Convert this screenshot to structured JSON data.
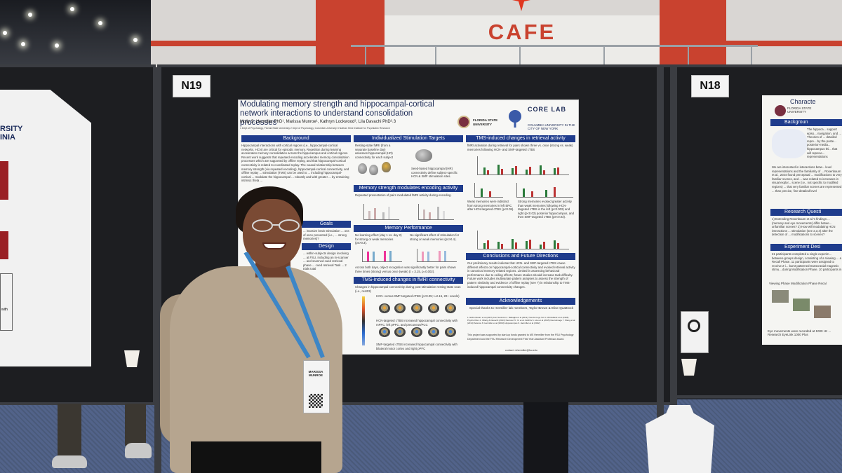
{
  "venue": {
    "cafe_sign": "CAFE",
    "board_labels": {
      "center": "N19",
      "right": "N18"
    }
  },
  "left_poster": {
    "title_fragment": "RSITY\nINIA",
    "side_text": "with"
  },
  "center_poster": {
    "title": "Modulating memory strength and hippocampal-cortical network interactions to understand consolidation processes",
    "authors": "Molly S. Hermiller PhD¹, Marissa Munroe¹, Kathryn Lockwood², Lila Davachi PhD²˒3",
    "affiliations": "1 Dept of Psychology, Florida State University   2 Dept of Psychology, Columbia University   3 Nathan Kline Institute for Psychiatric Research",
    "logos": {
      "fsu": "FLORIDA STATE UNIVERSITY",
      "corelab": "CORE LAB",
      "columbia": "COLUMBIA UNIVERSITY IN THE CITY OF NEW YORK"
    },
    "sections": {
      "background": {
        "heading": "Background",
        "text": "Hippocampal interactions with cortical regions (i.e., hippocampal-cortical networks, HCN) are critical for episodic memory. Repetition during learning accelerates memory consolidation across the hippocampus and cortical regions. Recent work suggests that repeated encoding accelerates memory consolidation processes which are supported by offline replay, and that hippocampal-cortical connectivity is related to coordinated replay. The causal relationship between memory strength (via repeated encoding), hippocampal-cortical connectivity, and offline replay ... stimulation (TMS) can be used to ... including hippocampal-cortical ... modulate the hippocampal ... robustly and with greater ... by entraining intrinsic theta ..."
      },
      "goals": {
        "heading": "Goals",
        "text": "... invasive brain stimulation ... ons of once presented (i.e., ... strong memories)?"
      },
      "design": {
        "heading": "Design",
        "text": "... within-subjects design involving ... at FSU, including an in-scanner ... and scanned cued retrieval phase ... cued retrieval Task ... 2 trials total"
      },
      "targets": {
        "heading": "Individualized Stimulation Targets",
        "text": "Resting-state fMRI (from a separate baseline day) assesses hippocampal (HR) connectivity for each subject",
        "seed_text": "Seed-based hippocampal (HR) connectivity define subject-specific HCN & SMF stimulation sites."
      },
      "encoding": {
        "heading": "Memory strength modulates encoding activity",
        "text": "Repeated presentation of pairs modulated fMRI activity during encoding."
      },
      "memory": {
        "heading": "Memory Performance",
        "text_a": "No learning effect (day 1 vs. day 2) for strong or weak memories (ps>0.3).",
        "text_b": "No significant effect of stimulation for strong or weak memories (ps>0.4).",
        "text_c": "Across both days, object recognition was significantly better for pairs shown three times (strong) versus once (weak) (t = 3.15, p=0.002)."
      },
      "fmri": {
        "heading": "TMS-induced changes in fMRI connectivity",
        "text": "Changes in hippocampal connectivity during post-stimulation resting-state scan (i.e., rest03)",
        "hcn_text": "HCN- versus SMF-targeted cTBS (p<0.05; t=2.16, 20+ voxels)",
        "hcn_text2": "HCN-targeted cTBS increased hippocampal connectivity with mPFC, left pPFC, and precuneus/PCC",
        "smf_text": "SMF-targeted cTBS increased hippocampal connectivity with bilateral motor cortex and right pPFC"
      },
      "retrieval": {
        "heading": "TMS-induced changes in retrieval activity",
        "text": "fMRI activation during retrieval for pairs shown three vs. once (strong vs. weak) memories following HCN- and SMF-targeted cTBS",
        "text_b": "Weak memories were indistinct from strong memories in left ERC after HCN-targeted cTBS (p<0.05).",
        "text_c": "Strong memories evoked greater activity than weak memories following HCN-targeted cTBS in the left (p<0.002) and right (p<0.02) posterior hippocampus, and then SMF-targeted cTBS (ps<0.03)."
      },
      "conclusions": {
        "heading": "Conclusions and Future Directions",
        "text": "Our preliminary results indicate that HCN- and SMF-targeted cTBS cause different effects on hippocampal-cortical connectivity and evoked retrieval activity in canonical memory-related regions. Limited in assessing behavioral performance due to ceiling effects; future studies should increase task difficulty. Future work includes multivariate pattern analyses to assess the strength of pattern similarity and evidence of offline replay (see ?) in relationship to TMS-induced hippocampal connectivity changes."
      },
      "acknowledgements": {
        "heading": "Acknowledgements",
        "text": "Special thanks to Hermiller lab members, Taylor Brown & Elise Quattrock",
        "refs": "1. Eichenbaum et al (2007) Ann Neurosci   2. Battaglia et al (2011) Trends Cogn Sci   3. McClelland et al (1995) Psychol Rev   4. Villarig & Davachi (2013) Neurosci   5. Yu et al. bioRxiv   6. Hsu et al (2015) NeuroImage   7. Wang et al (2014) Science   8. Hermiller et al (2019) Hippocampus   9. Hermiller et al (2022)",
        "funding": "This project was supported by start-up funds granted to MS Hermiller from the FSU Psychology Department and the FSU Research Development First Year Assistant Professor award.",
        "contact": "contact: mhermiller@fsu.edu"
      }
    }
  },
  "right_poster": {
    "title_fragment": "Characte",
    "fsu": "FLORIDA STATE UNIVERSITY",
    "headings": [
      "Backgroun",
      "Research Questi",
      "Experiment Desi"
    ],
    "text_1": "The hippoca... support episo... navigation, and ... Theories of ... detailed repre... by the poste... posterior-media... hippocampus thi... that will represe... representations",
    "text_2": "We are interested in interactions betw... level representations and the familiarity of ... Rosenbaum et al., 2024 found perceptual ... modifications to very familiar scenes, and ... was related to increases in visual explor... scene (i.e., not specific to modified regions) ... that very familiar scenes are represented ... than precise, fine-detailed level",
    "text_3": "1) Extending Rosenbaum et al.'s findings ... (memory and eye movements) differ betwe... unfamiliar scenes? 2) How will modulating HCN interactions ... stimulation (see 2,3,4) alter the detection of ... modifications to scenes?",
    "text_4": "21 participants completed a single experim... between-groups design, consisting of a Viewing ... a Recall Phase. 11 participants were assigned to receive 2-i... burst patterned transcranial magnetic stimu... during Modification Phase. 10 participants in",
    "phases": "Viewing Phase   Modification Phase   Recal",
    "footer": "Eye movements were recorded at 1000 Hz ... Research EyeLink 1000 Plus"
  },
  "presenter_badge": {
    "name": "MARISSA MUNROE"
  }
}
